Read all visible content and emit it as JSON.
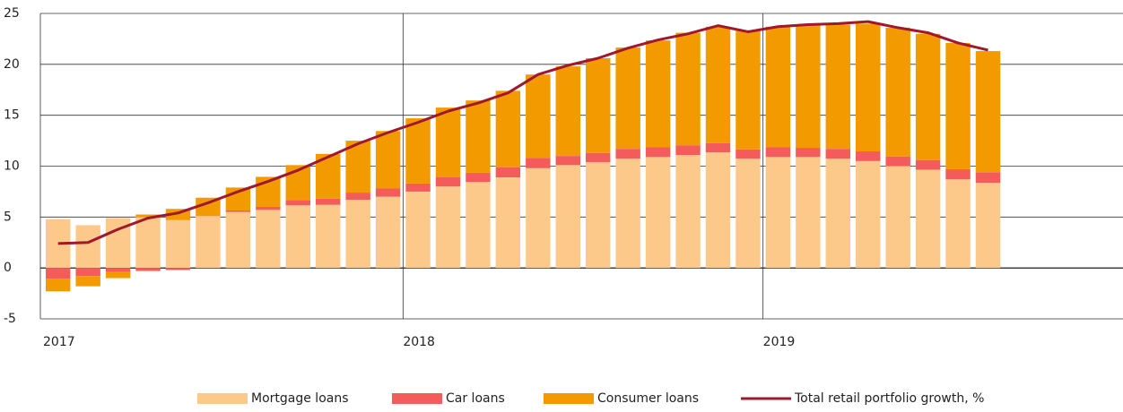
{
  "chart_data": {
    "type": "bar",
    "stacked": true,
    "categories": [
      "2017",
      null,
      null,
      null,
      null,
      null,
      null,
      null,
      null,
      null,
      null,
      null,
      "2018",
      null,
      null,
      null,
      null,
      null,
      null,
      null,
      null,
      null,
      null,
      null,
      "2019",
      null,
      null,
      null,
      null,
      null,
      null,
      null,
      null,
      null,
      null,
      null
    ],
    "series": [
      {
        "name": "Mortgage loans",
        "color": "#fcc98b",
        "values": [
          4.8,
          4.2,
          4.9,
          5.0,
          4.7,
          5.1,
          5.5,
          5.7,
          6.15,
          6.2,
          6.7,
          7.0,
          7.5,
          8.0,
          8.45,
          8.9,
          9.8,
          10.1,
          10.4,
          10.75,
          10.9,
          11.1,
          11.35,
          10.75,
          10.9,
          10.9,
          10.75,
          10.5,
          10.0,
          9.65,
          8.7,
          8.35,
          null,
          null,
          null,
          null
        ]
      },
      {
        "name": "Car loans",
        "color": "#f45b5b",
        "values": [
          -1.05,
          -0.8,
          -0.4,
          -0.3,
          -0.2,
          0.05,
          0.15,
          0.3,
          0.5,
          0.6,
          0.7,
          0.8,
          0.8,
          0.9,
          0.9,
          1.0,
          1.0,
          0.9,
          0.9,
          0.95,
          0.95,
          0.95,
          0.9,
          0.9,
          0.95,
          0.9,
          0.95,
          0.95,
          0.95,
          0.95,
          1.0,
          1.05,
          null,
          null,
          null,
          null
        ]
      },
      {
        "name": "Consumer loans",
        "color": "#f29a00",
        "values": [
          -1.25,
          -1.0,
          -0.6,
          0.25,
          1.1,
          1.75,
          2.25,
          2.95,
          3.45,
          4.4,
          5.1,
          5.65,
          6.4,
          6.85,
          7.1,
          7.5,
          8.2,
          8.8,
          9.3,
          9.95,
          10.5,
          11.05,
          11.45,
          11.65,
          11.85,
          12.05,
          12.2,
          12.55,
          12.65,
          12.4,
          12.4,
          11.9,
          null,
          null,
          null,
          null
        ]
      },
      {
        "name": "Total retail portfolio growth, %",
        "color": "#a0182b",
        "kind": "line",
        "values": [
          2.4,
          2.5,
          3.8,
          4.9,
          5.4,
          6.4,
          7.5,
          8.5,
          9.6,
          10.9,
          12.2,
          13.3,
          14.3,
          15.4,
          16.2,
          17.2,
          19.0,
          19.9,
          20.6,
          21.6,
          22.4,
          23.0,
          23.8,
          23.2,
          23.7,
          23.9,
          24.0,
          24.2,
          23.6,
          23.1,
          22.1,
          21.4,
          null,
          null,
          null,
          null
        ]
      }
    ],
    "ylim": [
      -5,
      25
    ],
    "yticks": [
      -5,
      0,
      5,
      10,
      15,
      20,
      25
    ],
    "grid": true,
    "legend": "bottom"
  }
}
